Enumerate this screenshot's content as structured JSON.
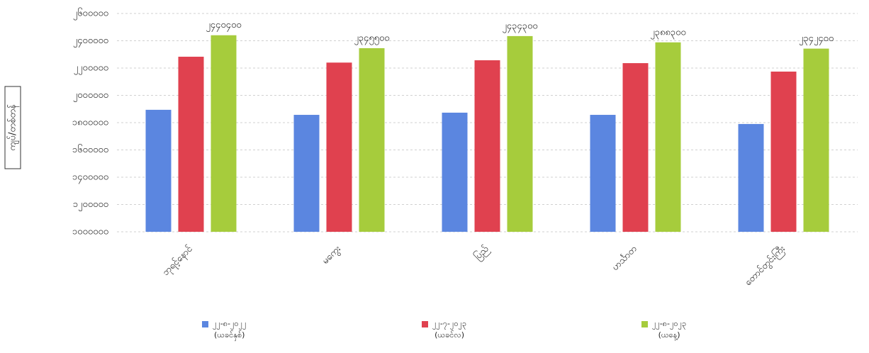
{
  "chart_data": {
    "type": "bar",
    "y_axis_label": "ကျပ်/တစ်တန်",
    "categories": [
      "ဘုရင့်နောင်",
      "မကွေး",
      "ပြည်",
      "ဟင်္သာတ",
      "တောင်တွင်းကြီး"
    ],
    "series": [
      {
        "name": "၂၂-၈-၂၀၂၂\n(ယခင်နှစ်)",
        "color": "#5b86e0",
        "values": [
          1894000,
          1857000,
          1873000,
          1857000,
          1790000
        ]
      },
      {
        "name": "၂၂-၇-၂၀၂၃\n(ယခင်လ)",
        "color": "#e0414f",
        "values": [
          2283000,
          2240000,
          2257000,
          2236000,
          2174000
        ]
      },
      {
        "name": "၂၂-၈-၂၀၂၃\n(ယနေ့)",
        "color": "#a6cc3c",
        "values": [
          2440400,
          2345500,
          2434300,
          2388300,
          2342400
        ],
        "value_labels": [
          "၂၄၄၀၄၀၀",
          "၂၃၄၅၅၀၀",
          "၂၄၃၄၃၀၀",
          "၂၃၈၈၃၀၀",
          "၂၃၄၂၄၀၀"
        ]
      }
    ],
    "ylim": [
      1000000,
      2600000
    ],
    "yticks": [
      {
        "value": 1000000,
        "label": "၁၀၀၀၀၀၀"
      },
      {
        "value": 1200000,
        "label": "၁၂၀၀၀၀၀"
      },
      {
        "value": 1400000,
        "label": "၁၄၀၀၀၀၀"
      },
      {
        "value": 1600000,
        "label": "၁၆၀၀၀၀၀"
      },
      {
        "value": 1800000,
        "label": "၁၈၀၀၀၀၀"
      },
      {
        "value": 2000000,
        "label": "၂၀၀၀၀၀၀"
      },
      {
        "value": 2200000,
        "label": "၂၂၀၀၀၀၀"
      },
      {
        "value": 2400000,
        "label": "၂၄၀၀၀၀၀"
      },
      {
        "value": 2600000,
        "label": "၂၆၀၀၀၀၀"
      }
    ],
    "grid": true
  }
}
